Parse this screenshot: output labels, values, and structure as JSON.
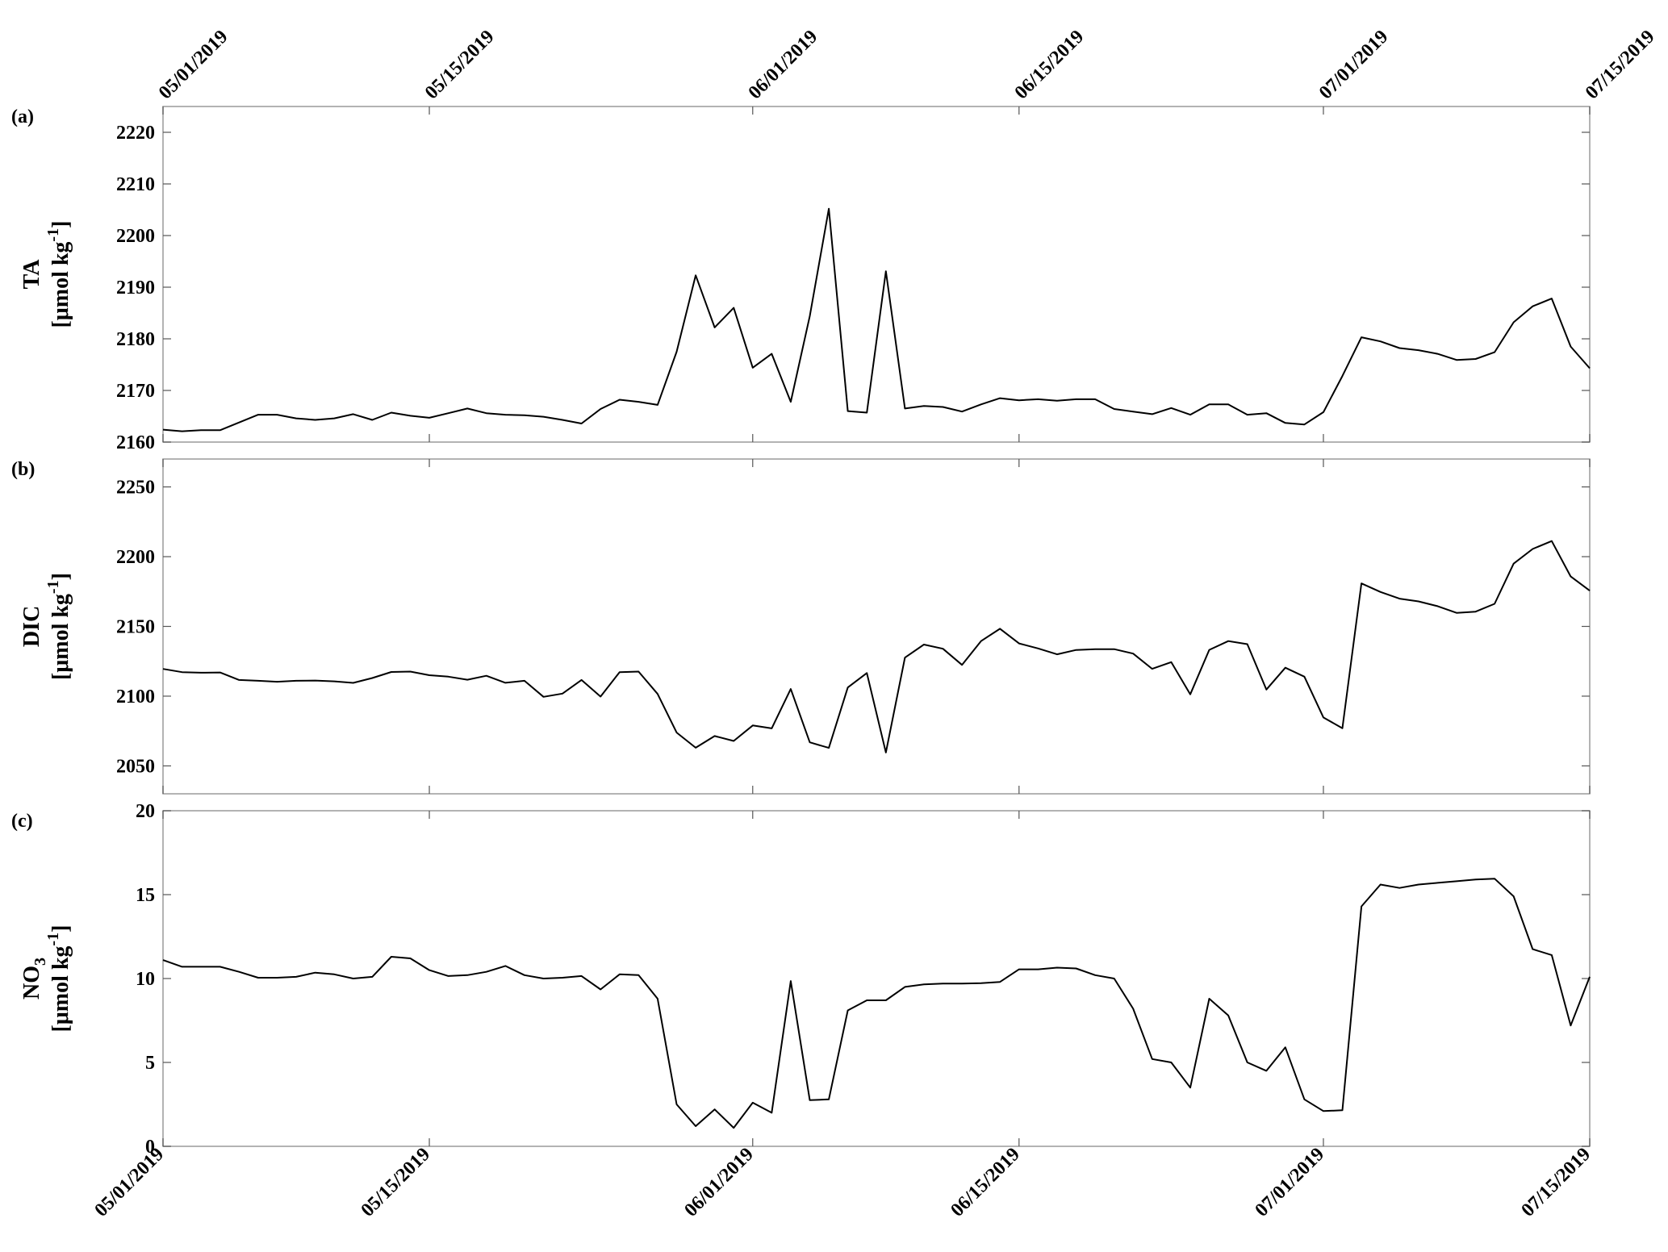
{
  "chart_data": [
    {
      "type": "line",
      "panel_label": "(a)",
      "ylabel_main": "TA",
      "ylabel_unit": "[μmol kg",
      "ylabel_sup": "-1",
      "ylabel_close": "]",
      "ylim": [
        2160,
        2225
      ],
      "yticks": [
        2160,
        2170,
        2180,
        2190,
        2200,
        2210,
        2220
      ],
      "xlim": [
        "05/01/2019",
        "07/15/2019"
      ],
      "xticks": [
        "05/01/2019",
        "05/15/2019",
        "06/01/2019",
        "06/15/2019",
        "07/01/2019",
        "07/15/2019"
      ],
      "grid": false,
      "series": [
        {
          "x": [
            "2019-05-01",
            "2019-05-02",
            "2019-05-03",
            "2019-05-04",
            "2019-05-05",
            "2019-05-06",
            "2019-05-07",
            "2019-05-08",
            "2019-05-09",
            "2019-05-10",
            "2019-05-11",
            "2019-05-12",
            "2019-05-13",
            "2019-05-14",
            "2019-05-15",
            "2019-05-16",
            "2019-05-17",
            "2019-05-18",
            "2019-05-19",
            "2019-05-20",
            "2019-05-21",
            "2019-05-22",
            "2019-05-23",
            "2019-05-24",
            "2019-05-25",
            "2019-05-26",
            "2019-05-27",
            "2019-05-28",
            "2019-05-29",
            "2019-05-30",
            "2019-05-31",
            "2019-06-01",
            "2019-06-02",
            "2019-06-03",
            "2019-06-04",
            "2019-06-05",
            "2019-06-06",
            "2019-06-07",
            "2019-06-08",
            "2019-06-09",
            "2019-06-10",
            "2019-06-11",
            "2019-06-12",
            "2019-06-13",
            "2019-06-14",
            "2019-06-15",
            "2019-06-16",
            "2019-06-17",
            "2019-06-18",
            "2019-06-19",
            "2019-06-20",
            "2019-06-21",
            "2019-06-22",
            "2019-06-23",
            "2019-06-24",
            "2019-06-25",
            "2019-06-26",
            "2019-06-27",
            "2019-06-28",
            "2019-06-29",
            "2019-06-30",
            "2019-07-01",
            "2019-07-02",
            "2019-07-03",
            "2019-07-04",
            "2019-07-05",
            "2019-07-06",
            "2019-07-07",
            "2019-07-08",
            "2019-07-09",
            "2019-07-10",
            "2019-07-11",
            "2019-07-12",
            "2019-07-13",
            "2019-07-14",
            "2019-07-15"
          ],
          "y": [
            2162.4,
            2162.1,
            2162.3,
            2162.3,
            2163.8,
            2165.3,
            2165.3,
            2164.6,
            2164.3,
            2164.6,
            2165.4,
            2164.3,
            2165.7,
            2165.1,
            2164.7,
            2165.6,
            2166.5,
            2165.6,
            2165.3,
            2165.2,
            2164.9,
            2164.3,
            2163.6,
            2166.4,
            2168.2,
            2167.8,
            2167.2,
            2177.5,
            2192.3,
            2182.2,
            2186.0,
            2174.4,
            2177.1,
            2167.8,
            2184.4,
            2205.2,
            2166.0,
            2165.7,
            2193.1,
            2166.5,
            2167.0,
            2166.8,
            2165.9,
            2167.3,
            2168.5,
            2168.1,
            2168.3,
            2168.0,
            2168.3,
            2168.3,
            2166.4,
            2165.9,
            2165.4,
            2166.6,
            2165.3,
            2167.3,
            2167.3,
            2165.3,
            2165.6,
            2163.7,
            2163.4,
            2165.8,
            2172.8,
            2180.3,
            2179.5,
            2178.2,
            2177.8,
            2177.1,
            2175.9,
            2176.1,
            2177.4,
            2183.2,
            2186.3,
            2187.8,
            2178.5,
            2174.3
          ]
        }
      ]
    },
    {
      "type": "line",
      "panel_label": "(b)",
      "ylabel_main": "DIC",
      "ylabel_unit": "[μmol kg",
      "ylabel_sup": "-1",
      "ylabel_close": "]",
      "ylim": [
        2030,
        2270
      ],
      "yticks": [
        2050,
        2100,
        2150,
        2200,
        2250
      ],
      "xlim": [
        "05/01/2019",
        "07/15/2019"
      ],
      "xticks": [
        "05/01/2019",
        "05/15/2019",
        "06/01/2019",
        "06/15/2019",
        "07/01/2019",
        "07/15/2019"
      ],
      "grid": false,
      "series": [
        {
          "x": [
            "2019-05-01",
            "2019-05-02",
            "2019-05-03",
            "2019-05-04",
            "2019-05-05",
            "2019-05-06",
            "2019-05-07",
            "2019-05-08",
            "2019-05-09",
            "2019-05-10",
            "2019-05-11",
            "2019-05-12",
            "2019-05-13",
            "2019-05-14",
            "2019-05-15",
            "2019-05-16",
            "2019-05-17",
            "2019-05-18",
            "2019-05-19",
            "2019-05-20",
            "2019-05-21",
            "2019-05-22",
            "2019-05-23",
            "2019-05-24",
            "2019-05-25",
            "2019-05-26",
            "2019-05-27",
            "2019-05-28",
            "2019-05-29",
            "2019-05-30",
            "2019-05-31",
            "2019-06-01",
            "2019-06-02",
            "2019-06-03",
            "2019-06-04",
            "2019-06-05",
            "2019-06-06",
            "2019-06-07",
            "2019-06-08",
            "2019-06-09",
            "2019-06-10",
            "2019-06-11",
            "2019-06-12",
            "2019-06-13",
            "2019-06-14",
            "2019-06-15",
            "2019-06-16",
            "2019-06-17",
            "2019-06-18",
            "2019-06-19",
            "2019-06-20",
            "2019-06-21",
            "2019-06-22",
            "2019-06-23",
            "2019-06-24",
            "2019-06-25",
            "2019-06-26",
            "2019-06-27",
            "2019-06-28",
            "2019-06-29",
            "2019-06-30",
            "2019-07-01",
            "2019-07-02",
            "2019-07-03",
            "2019-07-04",
            "2019-07-05",
            "2019-07-06",
            "2019-07-07",
            "2019-07-08",
            "2019-07-09",
            "2019-07-10",
            "2019-07-11",
            "2019-07-12",
            "2019-07-13",
            "2019-07-14",
            "2019-07-15"
          ],
          "y": [
            2119.5,
            2117.2,
            2116.8,
            2117.0,
            2111.6,
            2111.0,
            2110.3,
            2111.0,
            2111.2,
            2110.6,
            2109.5,
            2113.0,
            2117.3,
            2117.6,
            2115.0,
            2114.0,
            2111.8,
            2114.6,
            2109.6,
            2111.0,
            2099.5,
            2101.8,
            2111.6,
            2099.7,
            2117.2,
            2117.6,
            2101.6,
            2073.9,
            2063.0,
            2071.4,
            2067.9,
            2079.0,
            2076.9,
            2105.1,
            2066.9,
            2062.9,
            2106.2,
            2116.6,
            2059.6,
            2127.6,
            2137.0,
            2134.0,
            2122.4,
            2139.5,
            2148.3,
            2137.8,
            2134.2,
            2130.0,
            2133.1,
            2133.7,
            2133.7,
            2130.5,
            2119.6,
            2124.4,
            2101.3,
            2133.2,
            2139.5,
            2137.3,
            2104.7,
            2120.4,
            2114.0,
            2084.7,
            2077.0,
            2180.8,
            2174.7,
            2169.9,
            2167.9,
            2164.5,
            2159.7,
            2160.6,
            2166.2,
            2195.0,
            2205.5,
            2211.2,
            2185.8,
            2175.6
          ]
        }
      ]
    },
    {
      "type": "line",
      "panel_label": "(c)",
      "ylabel_main": "NO",
      "ylabel_sub": "3",
      "ylabel_unit": "[μmol kg",
      "ylabel_sup": "-1",
      "ylabel_close": "]",
      "ylim": [
        0,
        20
      ],
      "yticks": [
        0,
        5,
        10,
        15,
        20
      ],
      "xlim": [
        "05/01/2019",
        "07/15/2019"
      ],
      "xticks": [
        "05/01/2019",
        "05/15/2019",
        "06/01/2019",
        "06/15/2019",
        "07/01/2019",
        "07/15/2019"
      ],
      "grid": false,
      "series": [
        {
          "x": [
            "2019-05-01",
            "2019-05-02",
            "2019-05-03",
            "2019-05-04",
            "2019-05-05",
            "2019-05-06",
            "2019-05-07",
            "2019-05-08",
            "2019-05-09",
            "2019-05-10",
            "2019-05-11",
            "2019-05-12",
            "2019-05-13",
            "2019-05-14",
            "2019-05-15",
            "2019-05-16",
            "2019-05-17",
            "2019-05-18",
            "2019-05-19",
            "2019-05-20",
            "2019-05-21",
            "2019-05-22",
            "2019-05-23",
            "2019-05-24",
            "2019-05-25",
            "2019-05-26",
            "2019-05-27",
            "2019-05-28",
            "2019-05-29",
            "2019-05-30",
            "2019-05-31",
            "2019-06-01",
            "2019-06-02",
            "2019-06-03",
            "2019-06-04",
            "2019-06-05",
            "2019-06-06",
            "2019-06-07",
            "2019-06-08",
            "2019-06-09",
            "2019-06-10",
            "2019-06-11",
            "2019-06-12",
            "2019-06-13",
            "2019-06-14",
            "2019-06-15",
            "2019-06-16",
            "2019-06-17",
            "2019-06-18",
            "2019-06-19",
            "2019-06-20",
            "2019-06-21",
            "2019-06-22",
            "2019-06-23",
            "2019-06-24",
            "2019-06-25",
            "2019-06-26",
            "2019-06-27",
            "2019-06-28",
            "2019-06-29",
            "2019-06-30",
            "2019-07-01",
            "2019-07-02",
            "2019-07-03",
            "2019-07-04",
            "2019-07-05",
            "2019-07-06",
            "2019-07-07",
            "2019-07-08",
            "2019-07-09",
            "2019-07-10",
            "2019-07-11",
            "2019-07-12",
            "2019-07-13",
            "2019-07-14",
            "2019-07-15"
          ],
          "y": [
            11.1,
            10.7,
            10.7,
            10.7,
            10.4,
            10.05,
            10.05,
            10.1,
            10.35,
            10.25,
            10.0,
            10.1,
            11.3,
            11.2,
            10.5,
            10.15,
            10.2,
            10.4,
            10.75,
            10.2,
            10.0,
            10.05,
            10.15,
            9.35,
            10.25,
            10.2,
            8.8,
            2.5,
            1.2,
            2.2,
            1.1,
            2.6,
            2.0,
            9.85,
            2.75,
            2.8,
            8.1,
            8.7,
            8.7,
            9.5,
            9.65,
            9.7,
            9.7,
            9.72,
            9.8,
            10.55,
            10.55,
            10.65,
            10.6,
            10.2,
            10.0,
            8.2,
            5.2,
            5.0,
            3.5,
            8.8,
            7.8,
            5.0,
            4.5,
            5.9,
            2.8,
            2.1,
            2.15,
            14.3,
            15.6,
            15.4,
            15.6,
            15.7,
            15.8,
            15.9,
            15.95,
            14.9,
            11.75,
            11.4,
            7.2,
            10.1
          ]
        }
      ]
    }
  ]
}
